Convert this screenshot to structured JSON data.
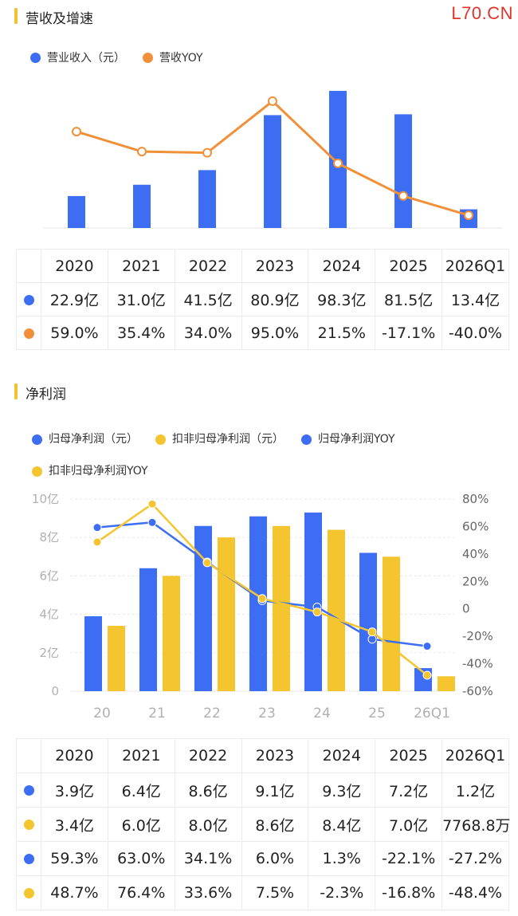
{
  "watermark": "L70.CN",
  "colors": {
    "blue": "#3d6df2",
    "orange": "#f0913a",
    "yellow": "#f5c52f",
    "axis": "#c8c8c8",
    "tick": "#b0b0b0"
  },
  "revenue": {
    "title": "营收及增速",
    "legend": [
      {
        "label": "营业收入（元）",
        "color": "#3d6df2"
      },
      {
        "label": "营收YOY",
        "color": "#f0913a"
      }
    ],
    "table": {
      "headers": [
        "2020",
        "2021",
        "2022",
        "2023",
        "2024",
        "2025",
        "2026Q1"
      ],
      "rows": [
        {
          "color": "#3d6df2",
          "cells": [
            "22.9亿",
            "31.0亿",
            "41.5亿",
            "80.9亿",
            "98.3亿",
            "81.5亿",
            "13.4亿"
          ]
        },
        {
          "color": "#f0913a",
          "cells": [
            "59.0%",
            "35.4%",
            "34.0%",
            "95.0%",
            "21.5%",
            "-17.1%",
            "-40.0%"
          ]
        }
      ]
    }
  },
  "profit": {
    "title": "净利润",
    "legend": [
      {
        "label": "归母净利润（元）",
        "color": "#3d6df2"
      },
      {
        "label": "扣非归母净利润（元）",
        "color": "#f5c52f"
      },
      {
        "label": "归母净利润YOY",
        "color": "#3d6df2"
      },
      {
        "label": "扣非归母净利润YOY",
        "color": "#f5c52f"
      }
    ],
    "table": {
      "headers": [
        "2020",
        "2021",
        "2022",
        "2023",
        "2024",
        "2025",
        "2026Q1"
      ],
      "rows": [
        {
          "color": "#3d6df2",
          "cells": [
            "3.9亿",
            "6.4亿",
            "8.6亿",
            "9.1亿",
            "9.3亿",
            "7.2亿",
            "1.2亿"
          ]
        },
        {
          "color": "#f5c52f",
          "cells": [
            "3.4亿",
            "6.0亿",
            "8.0亿",
            "8.6亿",
            "8.4亿",
            "7.0亿",
            "7768.8万"
          ]
        },
        {
          "color": "#3d6df2",
          "cells": [
            "59.3%",
            "63.0%",
            "34.1%",
            "6.0%",
            "1.3%",
            "-22.1%",
            "-27.2%"
          ]
        },
        {
          "color": "#f5c52f",
          "cells": [
            "48.7%",
            "76.4%",
            "33.6%",
            "7.5%",
            "-2.3%",
            "-16.8%",
            "-48.4%"
          ]
        }
      ]
    }
  },
  "chart_data": [
    {
      "type": "bar",
      "categories": [
        "2020",
        "2021",
        "2022",
        "2023",
        "2024",
        "2025",
        "2026Q1"
      ],
      "series": [
        {
          "name": "营业收入（元）",
          "kind": "bar",
          "axis": "left",
          "values": [
            22.9,
            31.0,
            41.5,
            80.9,
            98.3,
            81.5,
            13.4
          ]
        },
        {
          "name": "营收YOY",
          "kind": "line",
          "axis": "right",
          "values": [
            59.0,
            35.4,
            34.0,
            95.0,
            21.5,
            -17.1,
            -40.0
          ]
        }
      ],
      "ylim_left": [
        0,
        100
      ],
      "ylim_right": [
        -55,
        110
      ],
      "grid": false,
      "legend": "top-left"
    },
    {
      "type": "bar",
      "categories": [
        "20",
        "21",
        "22",
        "23",
        "24",
        "25",
        "26Q1"
      ],
      "series": [
        {
          "name": "归母净利润（元）",
          "kind": "bar",
          "axis": "left",
          "values": [
            3.9,
            6.4,
            8.6,
            9.1,
            9.3,
            7.2,
            1.2
          ]
        },
        {
          "name": "扣非归母净利润（元）",
          "kind": "bar",
          "axis": "left",
          "values": [
            3.4,
            6.0,
            8.0,
            8.6,
            8.4,
            7.0,
            0.77688
          ]
        },
        {
          "name": "归母净利润YOY",
          "kind": "line",
          "axis": "right",
          "values": [
            59.3,
            63.0,
            34.1,
            6.0,
            1.3,
            -22.1,
            -27.2
          ]
        },
        {
          "name": "扣非归母净利润YOY",
          "kind": "line",
          "axis": "right",
          "values": [
            48.7,
            76.4,
            33.6,
            7.5,
            -2.3,
            -16.8,
            -48.4
          ]
        }
      ],
      "left_ticks": [
        "0",
        "2亿",
        "4亿",
        "6亿",
        "8亿",
        "10亿"
      ],
      "left_tick_values": [
        0,
        2,
        4,
        6,
        8,
        10
      ],
      "right_ticks": [
        "80%",
        "60%",
        "40%",
        "20%",
        "0",
        "-20%",
        "-40%",
        "-60%"
      ],
      "right_tick_values": [
        80,
        60,
        40,
        20,
        0,
        -20,
        -40,
        -60
      ],
      "ylim_left": [
        0,
        10
      ],
      "ylim_right": [
        -60,
        80
      ],
      "grid": true,
      "legend": "top-left"
    }
  ]
}
